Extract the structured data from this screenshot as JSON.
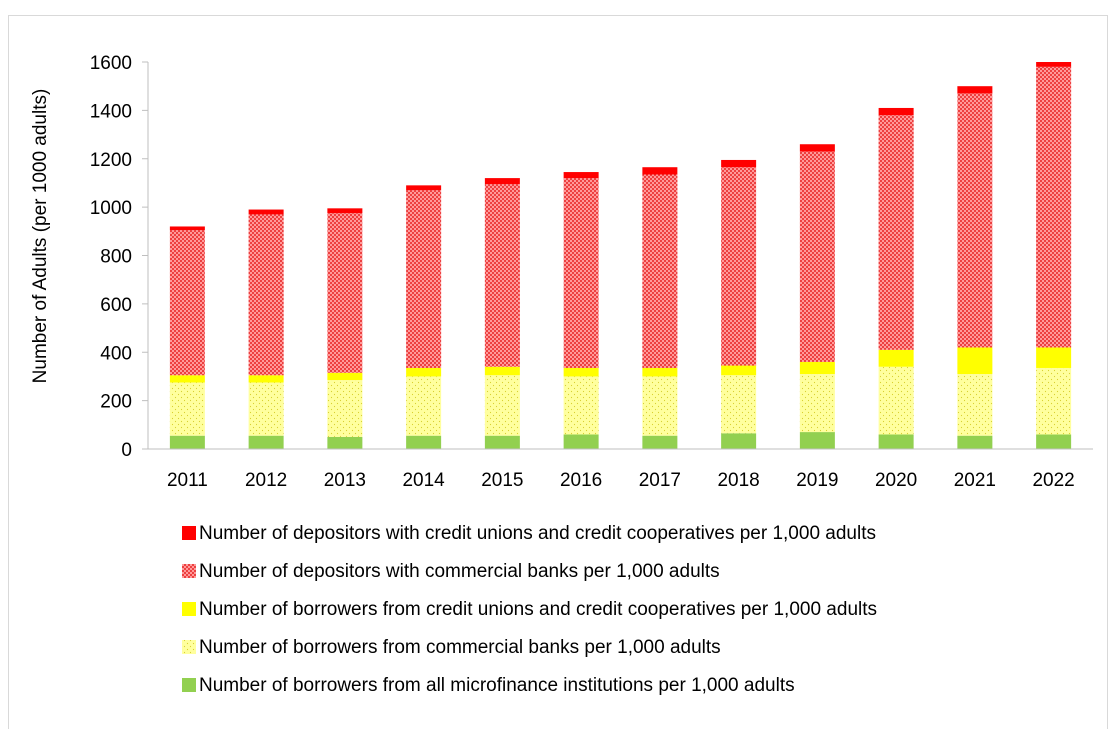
{
  "chart_data": {
    "type": "bar",
    "stacked": true,
    "title": "",
    "xlabel": "",
    "ylabel": "Number of Adults (per 1000 adults)",
    "ylim": [
      0,
      1600
    ],
    "yticks": [
      0,
      200,
      400,
      600,
      800,
      1000,
      1200,
      1400,
      1600
    ],
    "grid": false,
    "legend_position": "bottom",
    "categories": [
      "2011",
      "2012",
      "2013",
      "2014",
      "2015",
      "2016",
      "2017",
      "2018",
      "2019",
      "2020",
      "2021",
      "2022"
    ],
    "series": [
      {
        "name": "Number of borrowers from all microfinance institutions per 1,000 adults",
        "color": "#92d050",
        "pattern": "solid",
        "values": [
          55,
          55,
          50,
          55,
          55,
          60,
          55,
          65,
          70,
          60,
          55,
          60
        ]
      },
      {
        "name": "Number of borrowers from commercial banks per 1,000 adults",
        "color": "#ffff99",
        "pattern": "dots",
        "values": [
          220,
          220,
          235,
          245,
          250,
          240,
          245,
          240,
          240,
          280,
          255,
          275
        ]
      },
      {
        "name": "Number of borrowers from credit unions and credit cooperatives per 1,000 adults",
        "color": "#ffff00",
        "pattern": "solid",
        "values": [
          30,
          30,
          30,
          35,
          35,
          35,
          35,
          40,
          50,
          70,
          110,
          85
        ]
      },
      {
        "name": "Number of depositors with commercial banks per 1,000 adults",
        "color": "#ff8080",
        "pattern": "dots",
        "values": [
          600,
          665,
          660,
          735,
          755,
          785,
          800,
          820,
          870,
          970,
          1050,
          1160
        ]
      },
      {
        "name": "Number of depositors with credit unions and credit cooperatives per 1,000 adults",
        "color": "#ff0000",
        "pattern": "solid",
        "values": [
          15,
          20,
          20,
          20,
          25,
          25,
          30,
          30,
          30,
          30,
          30,
          20
        ]
      }
    ]
  }
}
